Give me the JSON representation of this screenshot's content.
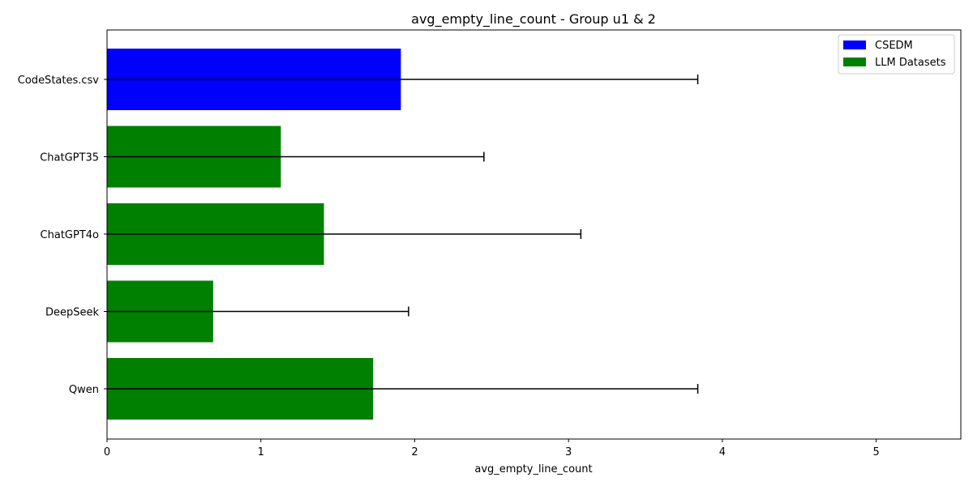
{
  "chart_data": {
    "type": "bar",
    "orientation": "horizontal",
    "title": "avg_empty_line_count - Group u1 & 2",
    "xlabel": "avg_empty_line_count",
    "ylabel": "",
    "xlim": [
      0,
      5.55
    ],
    "xticks": [
      0,
      1,
      2,
      3,
      4,
      5
    ],
    "grid": false,
    "categories": [
      "CodeStates.csv",
      "ChatGPT35",
      "ChatGPT4o",
      "DeepSeek",
      "Qwen"
    ],
    "values": [
      1.91,
      1.13,
      1.41,
      0.69,
      1.73
    ],
    "error_upper": [
      3.84,
      2.45,
      3.08,
      1.96,
      3.84
    ],
    "bar_groups": [
      "CSEDM",
      "LLM Datasets",
      "LLM Datasets",
      "LLM Datasets",
      "LLM Datasets"
    ],
    "legend": {
      "position": "top-right",
      "entries": [
        {
          "label": "CSEDM",
          "color": "#0000ff"
        },
        {
          "label": "LLM Datasets",
          "color": "#008000"
        }
      ]
    }
  }
}
